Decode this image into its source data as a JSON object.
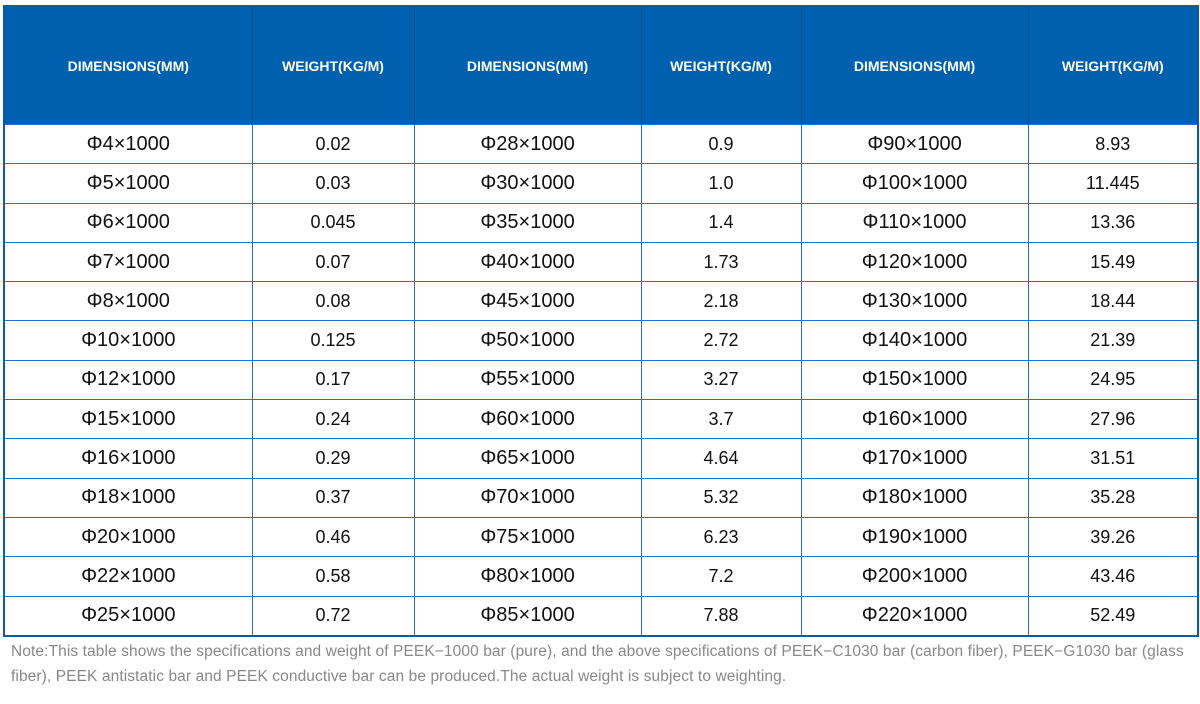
{
  "colors": {
    "header_bg": "#0060b0",
    "border": "#1f72c4",
    "note_text": "#888888"
  },
  "table": {
    "headers": [
      "DIMENSIONS(MM)",
      "WEIGHT(KG/M)",
      "DIMENSIONS(MM)",
      "WEIGHT(KG/M)",
      "DIMENSIONS(MM)",
      "WEIGHT(KG/M)"
    ],
    "rows": [
      [
        "Φ4×1000",
        "0.02",
        "Φ28×1000",
        "0.9",
        "Φ90×1000",
        "8.93"
      ],
      [
        "Φ5×1000",
        "0.03",
        "Φ30×1000",
        "1.0",
        "Φ100×1000",
        "11.445"
      ],
      [
        "Φ6×1000",
        "0.045",
        "Φ35×1000",
        "1.4",
        "Φ110×1000",
        "13.36"
      ],
      [
        "Φ7×1000",
        "0.07",
        "Φ40×1000",
        "1.73",
        "Φ120×1000",
        "15.49"
      ],
      [
        "Φ8×1000",
        "0.08",
        "Φ45×1000",
        "2.18",
        "Φ130×1000",
        "18.44"
      ],
      [
        "Φ10×1000",
        "0.125",
        "Φ50×1000",
        "2.72",
        "Φ140×1000",
        "21.39"
      ],
      [
        "Φ12×1000",
        "0.17",
        "Φ55×1000",
        "3.27",
        "Φ150×1000",
        "24.95"
      ],
      [
        "Φ15×1000",
        "0.24",
        "Φ60×1000",
        "3.7",
        "Φ160×1000",
        "27.96"
      ],
      [
        "Φ16×1000",
        "0.29",
        "Φ65×1000",
        "4.64",
        "Φ170×1000",
        "31.51"
      ],
      [
        "Φ18×1000",
        "0.37",
        "Φ70×1000",
        "5.32",
        "Φ180×1000",
        "35.28"
      ],
      [
        "Φ20×1000",
        "0.46",
        "Φ75×1000",
        "6.23",
        "Φ190×1000",
        "39.26"
      ],
      [
        "Φ22×1000",
        "0.58",
        "Φ80×1000",
        "7.2",
        "Φ200×1000",
        "43.46"
      ],
      [
        "Φ25×1000",
        "0.72",
        "Φ85×1000",
        "7.88",
        "Φ220×1000",
        "52.49"
      ]
    ]
  },
  "note": "Note:This table shows the specifications and weight of PEEK−1000 bar (pure), and the above specifications of PEEK−C1030 bar (carbon fiber), PEEK−G1030 bar (glass fiber), PEEK antistatic bar and PEEK conductive bar can be produced.The actual weight is subject to weighting."
}
